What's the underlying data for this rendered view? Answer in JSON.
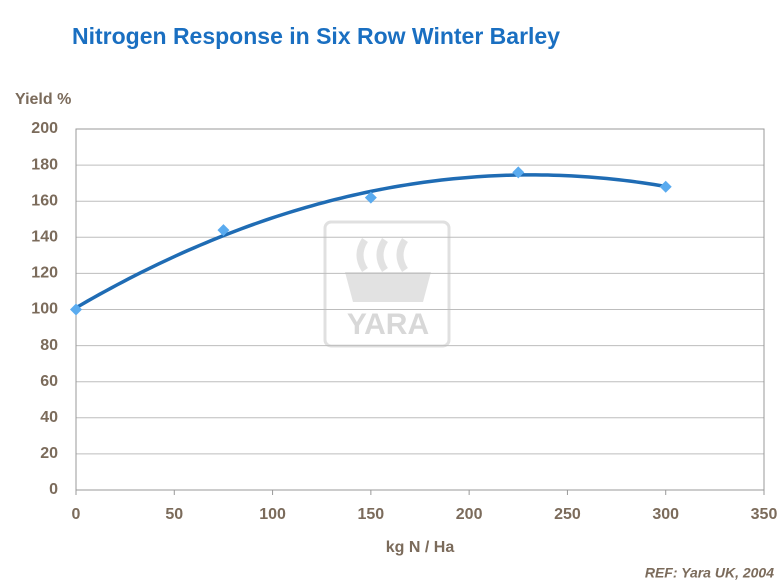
{
  "chart_data": {
    "type": "scatter",
    "title": "Nitrogen Response in Six Row Winter Barley",
    "y_label": "Yield %",
    "x_label": "kg N / Ha",
    "source": "REF: Yara UK, 2004",
    "watermark": "YARA",
    "x": [
      0,
      75,
      150,
      225,
      300
    ],
    "values": [
      100,
      144,
      162,
      176,
      168
    ],
    "color": "#5aabef",
    "trendline": "polynomial",
    "trend_color": "#1f6cb4",
    "xlim": [
      0,
      350
    ],
    "xticks": [
      0,
      50,
      100,
      150,
      200,
      250,
      300,
      350
    ],
    "ylim": [
      0,
      200
    ],
    "yticks": [
      0,
      20,
      40,
      60,
      80,
      100,
      120,
      140,
      160,
      180,
      200
    ],
    "grid": true
  }
}
